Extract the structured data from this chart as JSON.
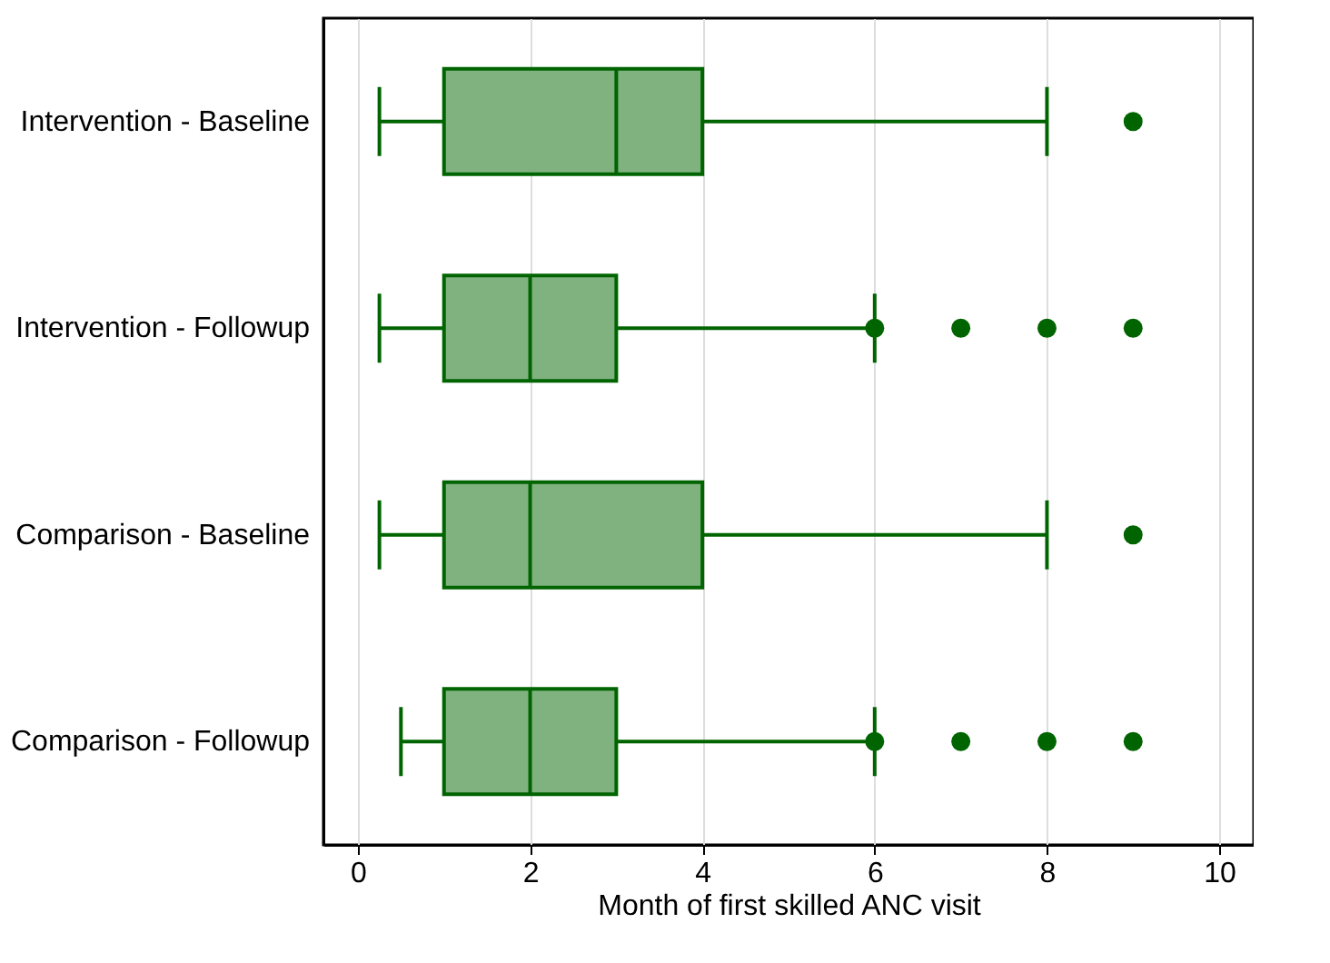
{
  "chart_data": {
    "type": "box",
    "orientation": "horizontal",
    "xlabel": "Month of first skilled ANC visit",
    "categories": [
      "Intervention - Baseline",
      "Intervention - Followup",
      "Comparison - Baseline",
      "Comparison - Followup"
    ],
    "series": [
      {
        "color": "#80b280",
        "boxes": [
          {
            "low": 0.25,
            "q1": 1,
            "median": 3,
            "q3": 4,
            "high": 8,
            "outliers": [
              9
            ]
          },
          {
            "low": 0.25,
            "q1": 1,
            "median": 2,
            "q3": 3,
            "high": 6,
            "outliers": [
              6,
              7,
              8,
              9
            ]
          },
          {
            "low": 0.25,
            "q1": 1,
            "median": 2,
            "q3": 4,
            "high": 8,
            "outliers": [
              9
            ]
          },
          {
            "low": 0.5,
            "q1": 1,
            "median": 2,
            "q3": 3,
            "high": 6,
            "outliers": [
              6,
              7,
              8,
              9
            ]
          }
        ]
      }
    ],
    "xlim": [
      -0.4,
      10.4
    ],
    "xticks": [
      0,
      2,
      4,
      6,
      8,
      10
    ],
    "grid": "x"
  }
}
